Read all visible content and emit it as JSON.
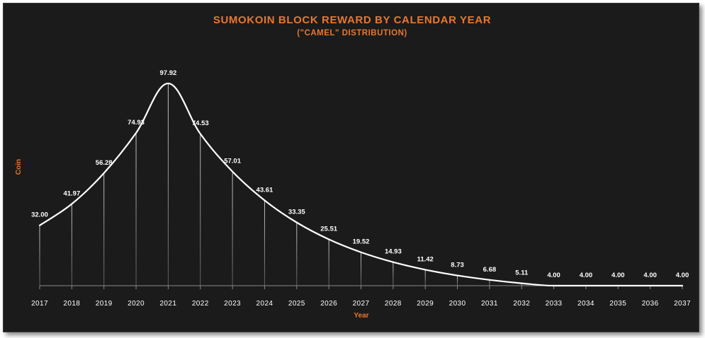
{
  "chart_data": {
    "type": "line",
    "title": "SUMOKOIN BLOCK REWARD BY CALENDAR YEAR",
    "subtitle": "(\"CAMEL\" DISTRIBUTION)",
    "xlabel": "Year",
    "ylabel": "Coin",
    "x": [
      "2017",
      "2018",
      "2019",
      "2020",
      "2021",
      "2022",
      "2023",
      "2024",
      "2025",
      "2026",
      "2027",
      "2028",
      "2029",
      "2030",
      "2031",
      "2032",
      "2033",
      "2034",
      "2035",
      "2036",
      "2037"
    ],
    "values": [
      32.0,
      41.97,
      56.28,
      74.93,
      97.92,
      74.53,
      57.01,
      43.61,
      33.35,
      25.51,
      19.52,
      14.93,
      11.42,
      8.73,
      6.68,
      5.11,
      4.0,
      4.0,
      4.0,
      4.0,
      4.0
    ],
    "data_labels": [
      "32.00",
      "41.97",
      "56.28",
      "74.93",
      "97.92",
      "74.53",
      "57.01",
      "43.61",
      "33.35",
      "25.51",
      "19.52",
      "14.93",
      "11.42",
      "8.73",
      "6.68",
      "5.11",
      "4.00",
      "4.00",
      "4.00",
      "4.00",
      "4.00"
    ],
    "ylim": [
      0,
      100
    ],
    "grid": false,
    "legend": "none",
    "colors": {
      "background": "#1b1b1b",
      "title": "#e8772e",
      "axis_title": "#e8772e",
      "line": "#ffffff",
      "drop_line": "#cfcfcf",
      "text": "#ffffff"
    }
  }
}
